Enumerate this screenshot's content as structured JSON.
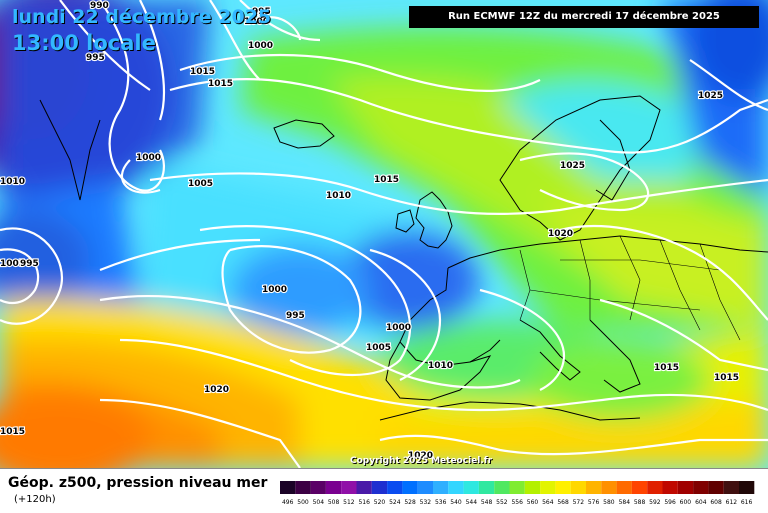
{
  "header": {
    "date": "lundi 22 décembre 2025",
    "hour": "13:00 locale",
    "run": "Run ECMWF 12Z du mercredi 17 décembre 2025"
  },
  "footer": {
    "title": "Géop. z500, pression niveau mer",
    "subtitle": "(+120h)"
  },
  "copyright": "Copyright 2025 Meteociel.fr",
  "legend": {
    "values": [
      "496",
      "500",
      "504",
      "508",
      "512",
      "516",
      "520",
      "524",
      "528",
      "532",
      "536",
      "540",
      "544",
      "548",
      "552",
      "556",
      "560",
      "564",
      "568",
      "572",
      "576",
      "580",
      "584",
      "588",
      "592",
      "596",
      "600",
      "604",
      "608",
      "612",
      "616"
    ],
    "colors": [
      "#1b0327",
      "#3c0044",
      "#5a0066",
      "#7a0090",
      "#9010a8",
      "#4a1aa8",
      "#1e2fd0",
      "#0a4cf0",
      "#0070ff",
      "#1e8cff",
      "#2fb0ff",
      "#33d6ff",
      "#2ee8e0",
      "#30e8a0",
      "#50e860",
      "#80ec30",
      "#b4f000",
      "#e2f400",
      "#fff000",
      "#ffd800",
      "#ffb400",
      "#ff9000",
      "#ff6a00",
      "#ff4400",
      "#e02000",
      "#c00800",
      "#a00000",
      "#800000",
      "#600000",
      "#401010",
      "#200808"
    ]
  },
  "isobars": [
    "990",
    "995",
    "995",
    "1000",
    "1000",
    "1015",
    "1015",
    "1000",
    "1005",
    "1010",
    "1010",
    "1005",
    "995",
    "1000",
    "995",
    "1000",
    "1005",
    "1010",
    "1015",
    "1020",
    "1025",
    "1025",
    "1015",
    "1015",
    "1020",
    "1015",
    "1020"
  ]
}
